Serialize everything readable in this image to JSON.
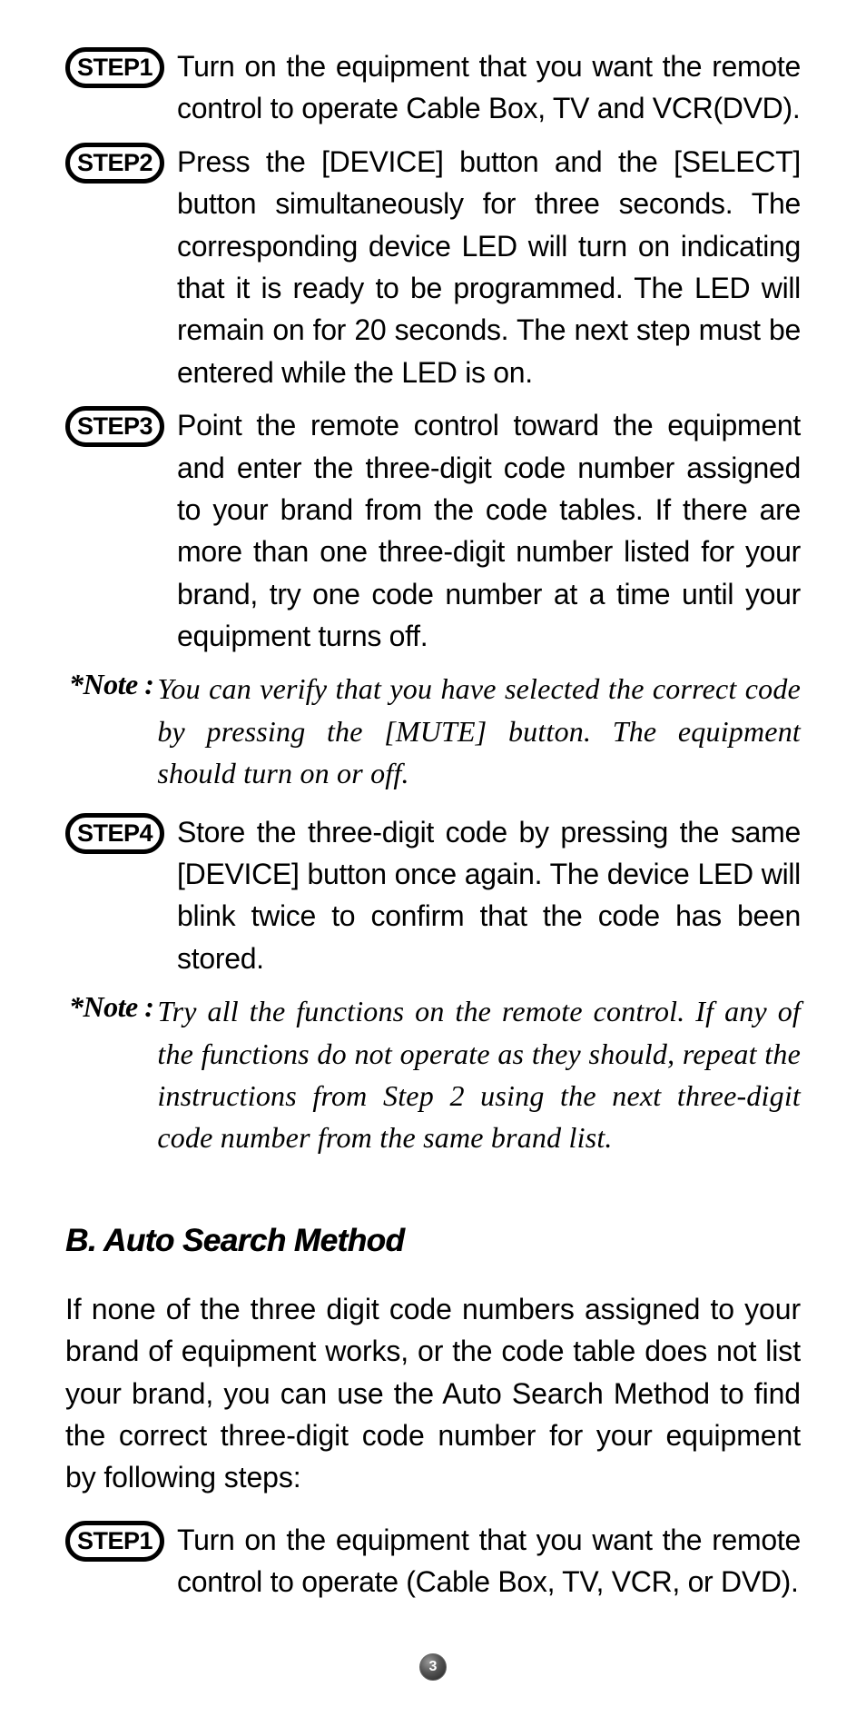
{
  "steps_a": [
    {
      "label": "STEP1",
      "text": "Turn on the equipment that you want the remote control to operate Cable Box, TV and VCR(DVD)."
    },
    {
      "label": "STEP2",
      "text": "Press the [DEVICE] button and the [SELECT] button simultaneously for three seconds. The corresponding device LED will turn on indicating that it is ready to be programmed. The LED will remain on for 20 seconds. The next step must be entered while the LED is on."
    },
    {
      "label": "STEP3",
      "text": "Point the remote control toward the equipment and enter the three-digit code number assigned to your brand from the code tables. If there are more than one three-digit number listed for your brand, try one code number at a time until your equipment turns off."
    }
  ],
  "note1": {
    "label": "*Note :",
    "text": "You can verify that you have selected the correct code by pressing the [MUTE] button. The equipment should turn on or off."
  },
  "step4": {
    "label": "STEP4",
    "text": "Store the three-digit code by pressing the same [DEVICE] button once again. The device LED will blink twice to confirm that the code has been stored."
  },
  "note2": {
    "label": "*Note :",
    "text": "Try all the functions on the remote control. If any of the functions do not operate as they should, repeat the instructions from Step 2 using the next three-digit code number from the same brand list."
  },
  "section_b": {
    "heading": "B. Auto Search Method",
    "intro": "If none of the three digit code numbers assigned to your brand of equipment works, or the code table does not list your brand, you can use the Auto Search Method to find the correct three-digit code number for your equipment by following steps:",
    "step1": {
      "label": "STEP1",
      "text": "Turn on the equipment that you want the remote control to operate (Cable Box, TV, VCR, or DVD)."
    }
  },
  "page_number": "3"
}
